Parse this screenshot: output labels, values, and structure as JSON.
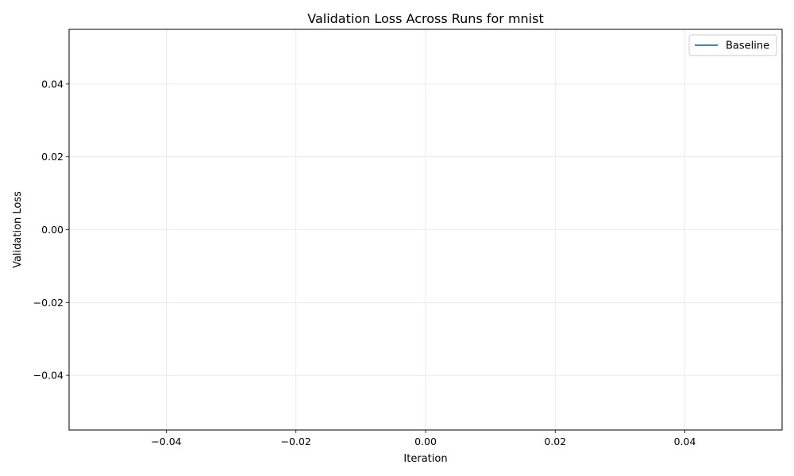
{
  "chart_data": {
    "type": "line",
    "title": "Validation Loss Across Runs for mnist",
    "xlabel": "Iteration",
    "ylabel": "Validation Loss",
    "xlim": [
      -0.055,
      0.055
    ],
    "ylim": [
      -0.055,
      0.055
    ],
    "x_ticks": [
      -0.04,
      -0.02,
      0.0,
      0.02,
      0.04
    ],
    "x_tick_labels": [
      "−0.04",
      "−0.02",
      "0.00",
      "0.02",
      "0.04"
    ],
    "y_ticks": [
      -0.04,
      -0.02,
      0.0,
      0.02,
      0.04
    ],
    "y_tick_labels": [
      "−0.04",
      "−0.02",
      "0.00",
      "0.02",
      "0.04"
    ],
    "grid": true,
    "legend_position": "top-right",
    "series": [
      {
        "name": "Baseline",
        "color": "#1f77b4",
        "x": [],
        "y": []
      }
    ]
  }
}
